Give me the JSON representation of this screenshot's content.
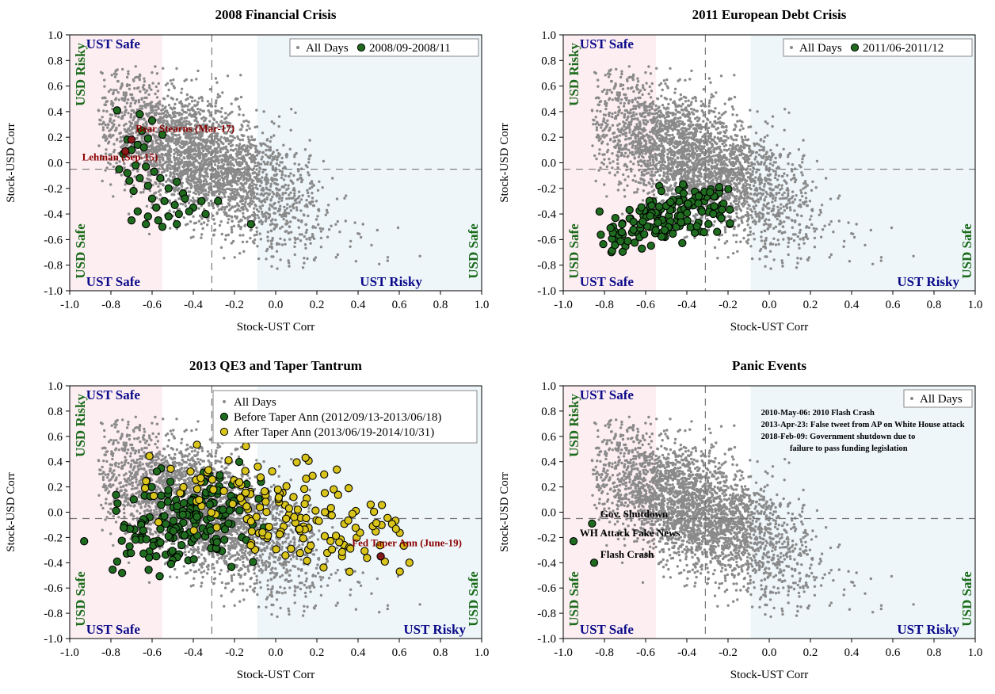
{
  "colors": {
    "background_points": "#8a8a8a",
    "green_points": "#1f6b1f",
    "yellow_points": "#d8c41a",
    "highlight_red": "#8b1a1a",
    "ust_safe_zone": "#fdeef2",
    "ust_risky_zone": "#eef6fa",
    "ust_text": "#0b0b8a",
    "usd_text": "#1b6b1b"
  },
  "axes": {
    "xlabel": "Stock-UST Corr",
    "ylabel": "Stock-USD Corr",
    "xlim": [
      -1.0,
      1.0
    ],
    "ylim": [
      -1.0,
      1.0
    ],
    "xticks": [
      "-1.0",
      "-0.8",
      "-0.6",
      "-0.4",
      "-0.2",
      "0.0",
      "0.2",
      "0.4",
      "0.6",
      "0.8",
      "1.0"
    ],
    "yticks": [
      "1.0",
      "0.8",
      "0.6",
      "0.4",
      "0.2",
      "0.0",
      "-0.2",
      "-0.4",
      "-0.6",
      "-0.8",
      "-1.0"
    ],
    "xline": -0.31,
    "yline": -0.05,
    "ust_safe_band": [
      -1.0,
      -0.55
    ],
    "ust_risky_band": [
      -0.09,
      1.0
    ]
  },
  "zone_labels": {
    "ust_safe": "UST Safe",
    "ust_risky": "UST Risky",
    "usd_risky": "USD Risky",
    "usd_safe": "USD Safe"
  },
  "chart_data": [
    {
      "type": "scatter",
      "title": "2008 Financial Crisis",
      "xlabel": "Stock-UST Corr",
      "ylabel": "Stock-USD Corr",
      "xlim": [
        -1.0,
        1.0
      ],
      "ylim": [
        -1.0,
        1.0
      ],
      "legend": {
        "placement": "top-right",
        "entries": [
          "All Days",
          "2008/09-2008/11"
        ]
      },
      "series": [
        {
          "name": "All Days",
          "note": "dense background cloud of daily correlations"
        },
        {
          "name": "2008/09-2008/11",
          "points": [
            [
              -0.77,
              0.41
            ],
            [
              -0.72,
              0.18
            ],
            [
              -0.66,
              0.38
            ],
            [
              -0.6,
              0.33
            ],
            [
              -0.65,
              0.25
            ],
            [
              -0.62,
              0.19
            ],
            [
              -0.67,
              0.14
            ],
            [
              -0.55,
              0.22
            ],
            [
              -0.7,
              0.1
            ],
            [
              -0.64,
              0.12
            ],
            [
              -0.74,
              0.07
            ],
            [
              -0.76,
              -0.05
            ],
            [
              -0.72,
              -0.08
            ],
            [
              -0.68,
              -0.02
            ],
            [
              -0.63,
              -0.03
            ],
            [
              -0.59,
              -0.07
            ],
            [
              -0.66,
              -0.12
            ],
            [
              -0.71,
              -0.14
            ],
            [
              -0.69,
              -0.22
            ],
            [
              -0.62,
              -0.18
            ],
            [
              -0.56,
              -0.12
            ],
            [
              -0.52,
              -0.2
            ],
            [
              -0.48,
              -0.15
            ],
            [
              -0.45,
              -0.24
            ],
            [
              -0.6,
              -0.28
            ],
            [
              -0.58,
              -0.35
            ],
            [
              -0.54,
              -0.3
            ],
            [
              -0.49,
              -0.33
            ],
            [
              -0.44,
              -0.28
            ],
            [
              -0.4,
              -0.35
            ],
            [
              -0.36,
              -0.3
            ],
            [
              -0.62,
              -0.42
            ],
            [
              -0.57,
              -0.45
            ],
            [
              -0.52,
              -0.42
            ],
            [
              -0.47,
              -0.4
            ],
            [
              -0.42,
              -0.38
            ],
            [
              -0.67,
              -0.38
            ],
            [
              -0.7,
              -0.45
            ],
            [
              -0.63,
              -0.48
            ],
            [
              -0.55,
              -0.5
            ],
            [
              -0.48,
              -0.48
            ],
            [
              -0.34,
              -0.4
            ],
            [
              -0.28,
              -0.3
            ],
            [
              -0.12,
              -0.48
            ]
          ]
        },
        {
          "name": "Highlighted",
          "points": [
            [
              -0.7,
              0.18
            ],
            [
              -0.73,
              0.09
            ]
          ]
        }
      ],
      "annotations": [
        "Bear Stearns (Mar-17)",
        "Lehman (Sep-15)"
      ]
    },
    {
      "type": "scatter",
      "title": "2011 European Debt Crisis",
      "xlabel": "Stock-UST Corr",
      "ylabel": "Stock-USD Corr",
      "xlim": [
        -1.0,
        1.0
      ],
      "ylim": [
        -1.0,
        1.0
      ],
      "legend": {
        "placement": "top-right",
        "entries": [
          "All Days",
          "2011/06-2011/12"
        ]
      },
      "series": [
        {
          "name": "All Days",
          "note": "dense background cloud of daily correlations"
        },
        {
          "name": "2011/06-2011/12",
          "cluster": {
            "x": [
              -0.83,
              -0.18
            ],
            "y": [
              -0.72,
              -0.15
            ],
            "count": 190
          }
        }
      ]
    },
    {
      "type": "scatter",
      "title": "2013 QE3 and Taper Tantrum",
      "xlabel": "Stock-UST Corr",
      "ylabel": "Stock-USD Corr",
      "xlim": [
        -1.0,
        1.0
      ],
      "ylim": [
        -1.0,
        1.0
      ],
      "legend": {
        "placement": "top-right",
        "entries": [
          "All Days",
          "Before Taper Ann (2012/09/13-2013/06/18)",
          "After Taper Ann (2013/06/19-2014/10/31)"
        ]
      },
      "series": [
        {
          "name": "All Days",
          "note": "dense background cloud of daily correlations"
        },
        {
          "name": "Before Taper Ann (2012/09/13-2013/06/18)",
          "cluster": {
            "x": [
              -0.8,
              -0.05
            ],
            "y": [
              -0.55,
              0.45
            ],
            "count": 200
          },
          "outlier": [
            -0.93,
            -0.23
          ]
        },
        {
          "name": "After Taper Ann (2013/06/19-2014/10/31)",
          "cluster": {
            "x": [
              -0.65,
              0.66
            ],
            "y": [
              -0.5,
              0.56
            ],
            "count": 190
          }
        },
        {
          "name": "Highlighted",
          "points": [
            [
              0.51,
              -0.35
            ]
          ]
        }
      ],
      "annotations": [
        "Fed Taper Ann (June-19)"
      ]
    },
    {
      "type": "scatter",
      "title": "Panic Events",
      "xlabel": "Stock-UST Corr",
      "ylabel": "Stock-USD Corr",
      "xlim": [
        -1.0,
        1.0
      ],
      "ylim": [
        -1.0,
        1.0
      ],
      "legend": {
        "placement": "top-right",
        "entries": [
          "All Days"
        ]
      },
      "series": [
        {
          "name": "All Days",
          "note": "dense background cloud of daily correlations"
        },
        {
          "name": "Events",
          "points": [
            [
              -0.86,
              -0.09
            ],
            [
              -0.95,
              -0.23
            ],
            [
              -0.85,
              -0.4
            ]
          ]
        }
      ],
      "annotations": [
        "Gov. Shutdown",
        "WH Attack Fake News",
        "Flash Crash"
      ],
      "event_notes": [
        "2010-May-06: 2010 Flash Crash",
        "2013-Apr-23: False tweet from AP on White House attack",
        "2018-Feb-09: Government shutdown due to",
        "failure to pass funding legislation"
      ]
    }
  ]
}
